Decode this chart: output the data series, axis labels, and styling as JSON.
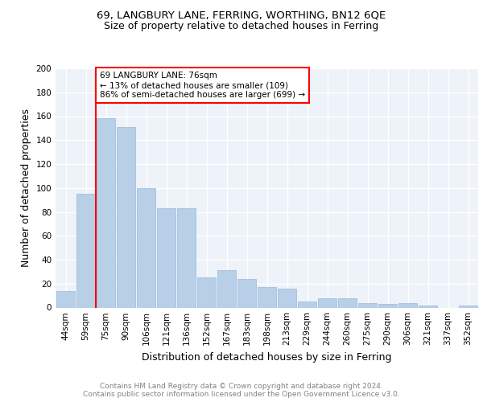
{
  "title1": "69, LANGBURY LANE, FERRING, WORTHING, BN12 6QE",
  "title2": "Size of property relative to detached houses in Ferring",
  "xlabel": "Distribution of detached houses by size in Ferring",
  "ylabel": "Number of detached properties",
  "categories": [
    "44sqm",
    "59sqm",
    "75sqm",
    "90sqm",
    "106sqm",
    "121sqm",
    "136sqm",
    "152sqm",
    "167sqm",
    "183sqm",
    "198sqm",
    "213sqm",
    "229sqm",
    "244sqm",
    "260sqm",
    "275sqm",
    "290sqm",
    "306sqm",
    "321sqm",
    "337sqm",
    "352sqm"
  ],
  "values": [
    14,
    95,
    158,
    151,
    100,
    83,
    83,
    25,
    31,
    24,
    17,
    16,
    5,
    8,
    8,
    4,
    3,
    4,
    2,
    0,
    2
  ],
  "bar_color": "#b8cfe8",
  "bar_edge_color": "#9ab8d8",
  "highlight_line_index": 2,
  "annotation_text": "69 LANGBURY LANE: 76sqm\n← 13% of detached houses are smaller (109)\n86% of semi-detached houses are larger (699) →",
  "annotation_box_color": "white",
  "annotation_box_edge_color": "red",
  "vline_color": "red",
  "ylim": [
    0,
    200
  ],
  "yticks": [
    0,
    20,
    40,
    60,
    80,
    100,
    120,
    140,
    160,
    180,
    200
  ],
  "footer_text": "Contains HM Land Registry data © Crown copyright and database right 2024.\nContains public sector information licensed under the Open Government Licence v3.0.",
  "bg_color": "#eef2f9",
  "grid_color": "#ffffff",
  "title_fontsize": 9.5,
  "subtitle_fontsize": 9,
  "axis_label_fontsize": 9,
  "tick_fontsize": 7.5,
  "footer_fontsize": 6.5
}
